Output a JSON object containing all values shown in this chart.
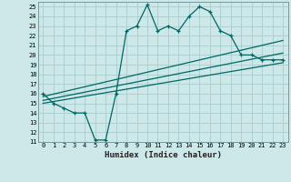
{
  "xlabel": "Humidex (Indice chaleur)",
  "ylabel": "",
  "bg_color": "#cde8e8",
  "grid_color": "#aacccc",
  "line_color": "#006666",
  "xlim": [
    -0.5,
    23.5
  ],
  "ylim": [
    11,
    25.5
  ],
  "xticks": [
    0,
    1,
    2,
    3,
    4,
    5,
    6,
    7,
    8,
    9,
    10,
    11,
    12,
    13,
    14,
    15,
    16,
    17,
    18,
    19,
    20,
    21,
    22,
    23
  ],
  "yticks": [
    11,
    12,
    13,
    14,
    15,
    16,
    17,
    18,
    19,
    20,
    21,
    22,
    23,
    24,
    25
  ],
  "main_line_x": [
    0,
    1,
    2,
    3,
    4,
    5,
    6,
    7,
    8,
    9,
    10,
    11,
    12,
    13,
    14,
    15,
    16,
    17,
    18,
    19,
    20,
    21,
    22,
    23
  ],
  "main_line_y": [
    16,
    15,
    14.5,
    14,
    14,
    11.2,
    11.2,
    16,
    22.5,
    23,
    25.2,
    22.5,
    23,
    22.5,
    24,
    25,
    24.5,
    22.5,
    22,
    20,
    20,
    19.5,
    19.5,
    19.5
  ],
  "reg_line1_x": [
    0,
    23
  ],
  "reg_line1_y": [
    15.0,
    19.2
  ],
  "reg_line2_x": [
    0,
    23
  ],
  "reg_line2_y": [
    15.3,
    20.2
  ],
  "reg_line3_x": [
    0,
    23
  ],
  "reg_line3_y": [
    15.7,
    21.5
  ]
}
